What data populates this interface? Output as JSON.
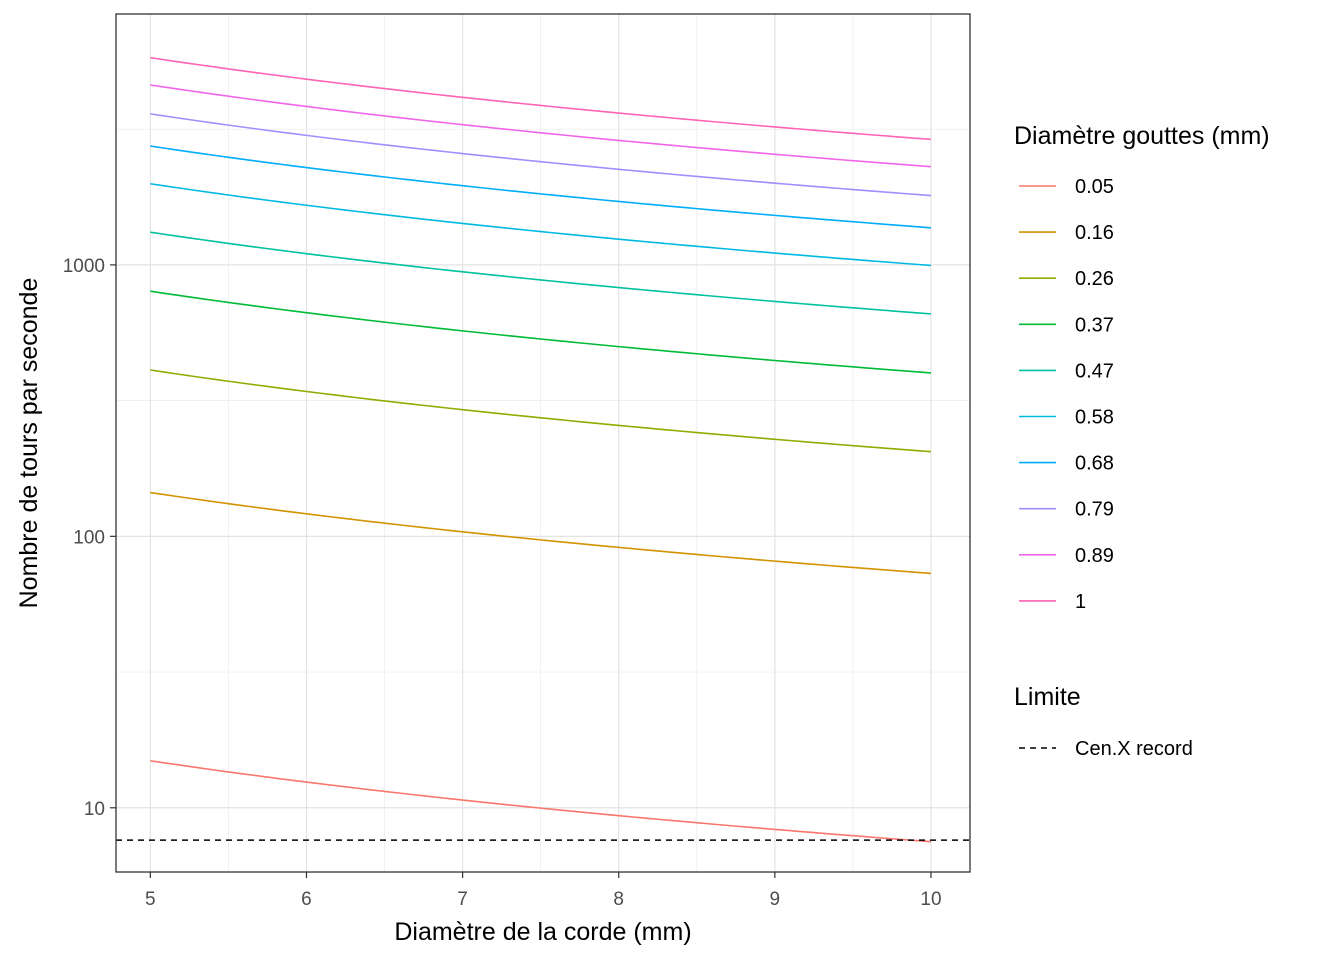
{
  "chart_data": {
    "type": "line",
    "xlabel": "Diamètre de la corde (mm)",
    "ylabel": "Nombre de tours par seconde",
    "x_scale": "linear",
    "y_scale": "log",
    "xlim": [
      4.78,
      10.25
    ],
    "ylim": [
      5.8,
      8400
    ],
    "x_ticks": [
      5,
      6,
      7,
      8,
      9,
      10
    ],
    "x_tick_labels": [
      "5",
      "6",
      "7",
      "8",
      "9",
      "10"
    ],
    "y_ticks": [
      10,
      100,
      1000
    ],
    "y_tick_labels": [
      "10",
      "100",
      "1000"
    ],
    "grid": true,
    "legend_placement": "right",
    "x": [
      5,
      6,
      7,
      8,
      9,
      10
    ],
    "series": [
      {
        "name": "0.05",
        "color": "#F8766D",
        "values": [
          14.9,
          12.3,
          10.6,
          9.3,
          8.3,
          7.5
        ]
      },
      {
        "name": "0.16",
        "color": "#D39200",
        "values": [
          145,
          121,
          104,
          91,
          81,
          73
        ]
      },
      {
        "name": "0.26",
        "color": "#93AA00",
        "values": [
          410,
          340,
          292,
          256,
          228,
          205
        ]
      },
      {
        "name": "0.37",
        "color": "#00BA38",
        "values": [
          800,
          665,
          570,
          500,
          445,
          400
        ]
      },
      {
        "name": "0.47",
        "color": "#00C19F",
        "values": [
          1320,
          1100,
          943,
          825,
          733,
          660
        ]
      },
      {
        "name": "0.58",
        "color": "#00B9E3",
        "values": [
          1990,
          1658,
          1421,
          1244,
          1106,
          995
        ]
      },
      {
        "name": "0.68",
        "color": "#00ADFA",
        "values": [
          2740,
          2283,
          1957,
          1713,
          1523,
          1370
        ]
      },
      {
        "name": "0.79",
        "color": "#A48CFF",
        "values": [
          3600,
          3000,
          2571,
          2250,
          2000,
          1800
        ]
      },
      {
        "name": "0.89",
        "color": "#F066EA",
        "values": [
          4600,
          3833,
          3286,
          2875,
          2556,
          2300
        ]
      },
      {
        "name": "1",
        "color": "#FF63B6",
        "values": [
          5800,
          4833,
          4143,
          3625,
          3222,
          2900
        ]
      }
    ],
    "reference_line": {
      "name": "Cen.X record",
      "y": 7.6,
      "style": "dashed",
      "color": "#000000"
    },
    "legends": [
      {
        "title": "Diamètre gouttes (mm)",
        "entries": [
          "0.05",
          "0.16",
          "0.26",
          "0.37",
          "0.47",
          "0.58",
          "0.68",
          "0.79",
          "0.89",
          "1"
        ]
      },
      {
        "title": "Limite",
        "entries": [
          "Cen.X record"
        ]
      }
    ]
  }
}
